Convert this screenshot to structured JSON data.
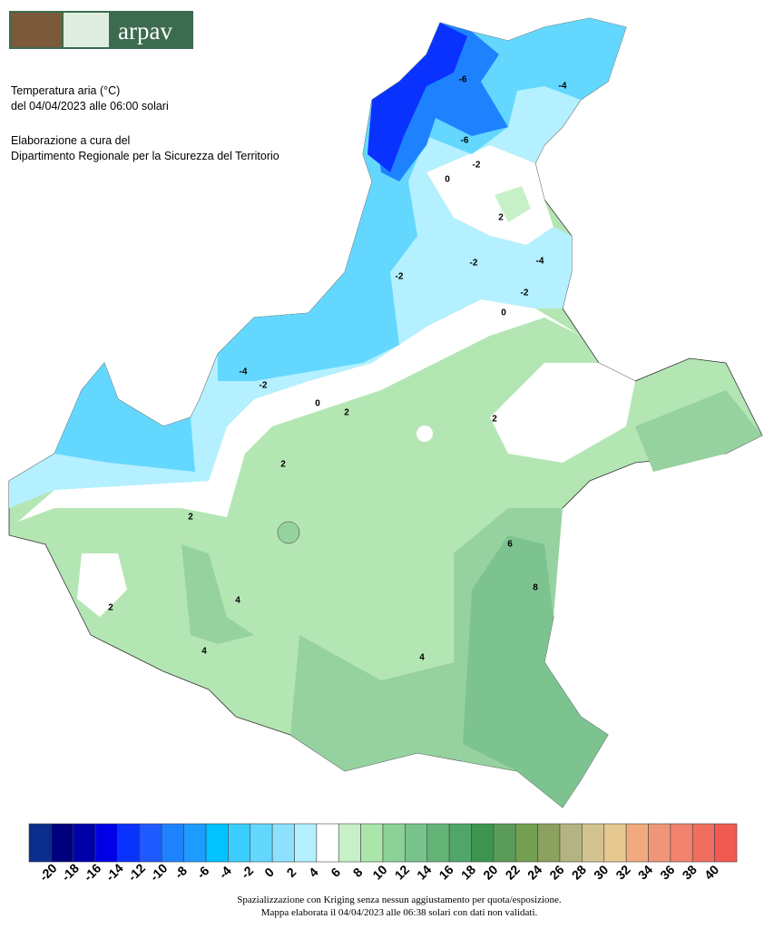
{
  "header": {
    "logo": "arpav",
    "title": "Temperatura aria (°C)",
    "subtitle": "del 04/04/2023 alle 06:00 solari",
    "credit_1": "Elaborazione a cura del",
    "credit_2": "Dipartimento Regionale per la Sicurezza del Territorio"
  },
  "map": {
    "contour_labels": [
      -6,
      -6,
      -4,
      -2,
      0,
      2,
      -2,
      -4,
      -2,
      0,
      -2,
      -4,
      -2,
      0,
      2,
      2,
      2,
      4,
      4,
      4,
      6,
      8,
      2,
      2
    ]
  },
  "legend": {
    "colors": [
      "#0b2d8c",
      "#00007f",
      "#0000a8",
      "#0000e6",
      "#0a32ff",
      "#1e5aff",
      "#1e82ff",
      "#1e9bff",
      "#00c3ff",
      "#3ccdff",
      "#64d7ff",
      "#8ce1ff",
      "#b4f0ff",
      "#ffffff",
      "#c8f0c8",
      "#aae6aa",
      "#8cd296",
      "#78c38c",
      "#64b478",
      "#50a569",
      "#3c9650",
      "#5a9b5a",
      "#73a050",
      "#8ca05f",
      "#b4b482",
      "#d2c391",
      "#e6c891",
      "#f0aa7d",
      "#f09678",
      "#f0826e",
      "#f06e5f",
      "#f05a50"
    ],
    "labels": [
      -20,
      -18,
      -16,
      -14,
      -12,
      -10,
      -8,
      -6,
      -4,
      -2,
      0,
      2,
      4,
      6,
      8,
      10,
      12,
      14,
      16,
      18,
      20,
      22,
      24,
      26,
      28,
      30,
      32,
      34,
      36,
      38,
      40
    ]
  },
  "footer": {
    "line_1": "Spazializzazione con Kriging senza nessun aggiustamento per quota/esposizione.",
    "line_2": "Mappa elaborata il 04/04/2023 alle 06:38 solari con dati non validati."
  }
}
